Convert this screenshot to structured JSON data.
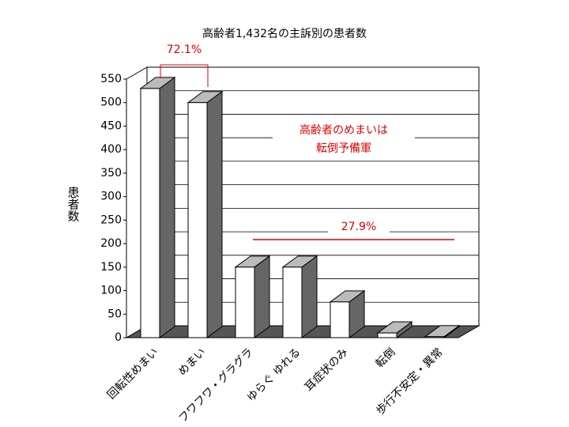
{
  "chart_data": {
    "type": "bar3d",
    "title": "高齢者1,432名の主訴別の患者数",
    "y_label": "患者数",
    "categories": [
      "回転性めまい",
      "めまい",
      "フワフワ・グラグラ",
      "ゆらぐ ゆれる",
      "耳症状のみ",
      "転倒",
      "歩行不安定・異常"
    ],
    "values": [
      530,
      500,
      150,
      150,
      76,
      10,
      2
    ],
    "ylim": [
      0,
      550
    ],
    "yticks": [
      0,
      50,
      100,
      150,
      200,
      250,
      300,
      350,
      400,
      450,
      500,
      550
    ],
    "grid": true,
    "annotations": [
      "72.1%",
      "高齢者のめまいは",
      "転倒予備軍",
      "27.9%"
    ]
  }
}
